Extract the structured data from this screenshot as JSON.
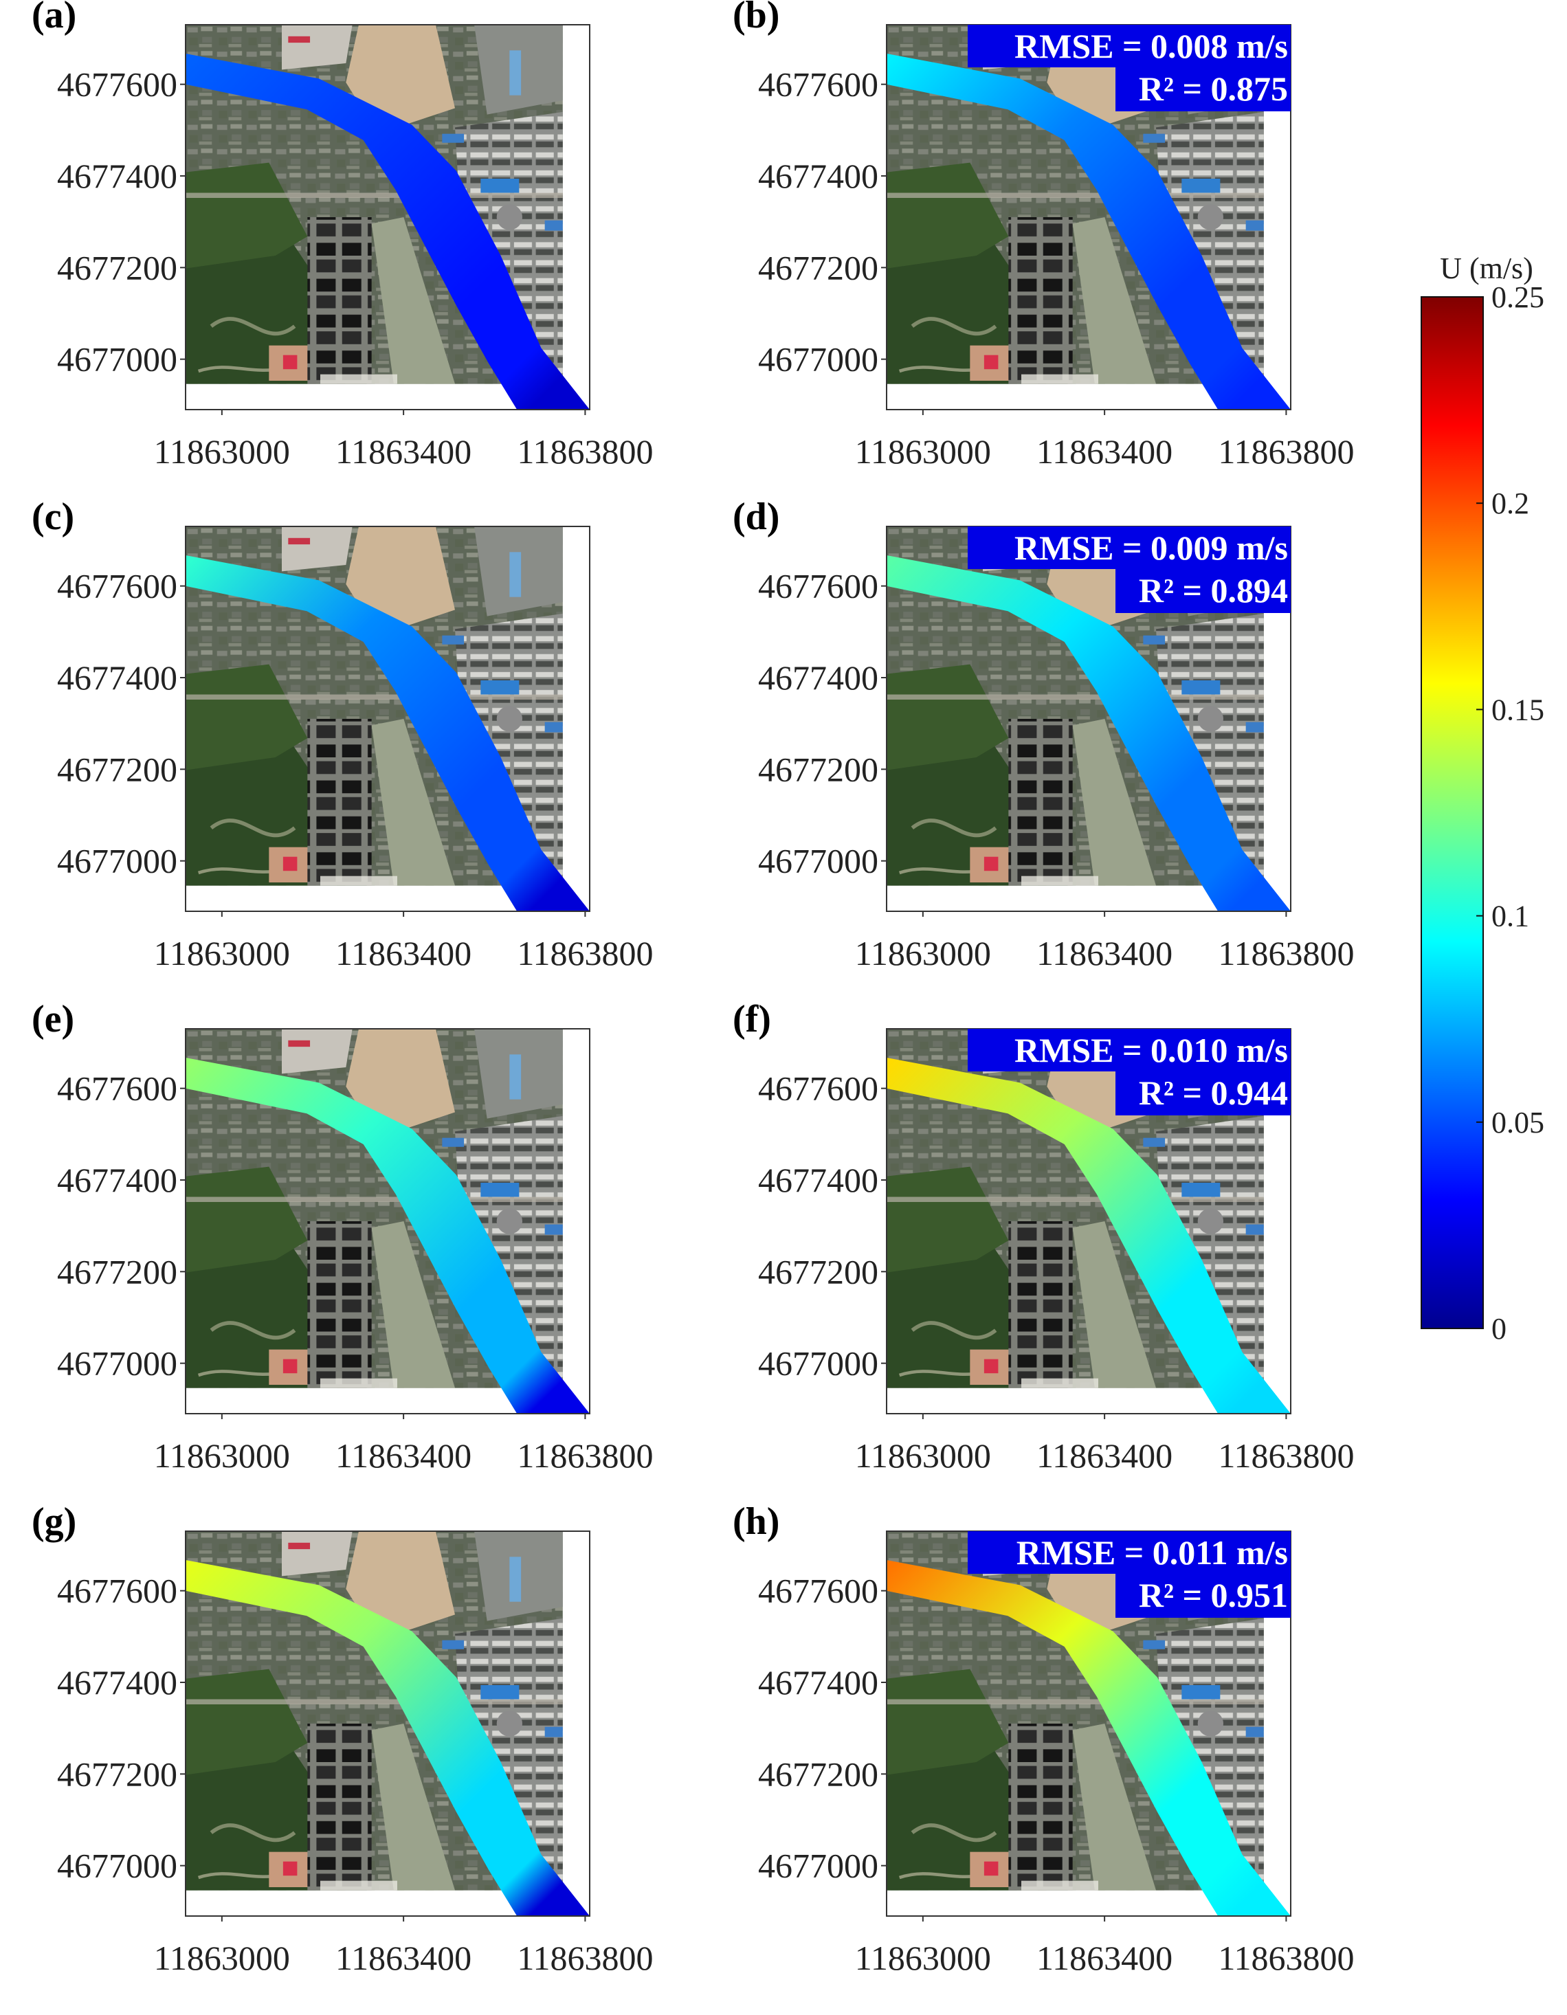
{
  "chart_data": {
    "type": "heatmap",
    "colorbar": {
      "title": "U (m/s)",
      "range": [
        0,
        0.25
      ],
      "ticks": [
        "0",
        "0.05",
        "0.1",
        "0.15",
        "0.2",
        "0.25"
      ],
      "tick_values": [
        0,
        0.05,
        0.1,
        0.15,
        0.2,
        0.25
      ],
      "colormap": [
        "#00008f",
        "#0000ff",
        "#00ffff",
        "#ffff00",
        "#ff0000",
        "#800000"
      ]
    },
    "axes": {
      "xlim": [
        11862920,
        11863810
      ],
      "ylim": [
        4676890,
        4677730
      ],
      "xticks": [
        11863000,
        11863400,
        11863800
      ],
      "yticks": [
        4677000,
        4677200,
        4677400,
        4677600
      ],
      "xtick_labels": [
        "11863000",
        "11863400",
        "11863800"
      ],
      "ytick_labels": [
        "4677000",
        "4677200",
        "4677400",
        "4677600"
      ]
    },
    "panels": [
      {
        "label": "(a)",
        "rmse": "",
        "r2": "",
        "velocity": {
          "upstream": 0.055,
          "bend": 0.045,
          "downstream": 0.035,
          "tail": 0.018
        }
      },
      {
        "label": "(b)",
        "rmse": "RMSE = 0.008 m/s",
        "r2": "R² = 0.875",
        "velocity": {
          "upstream": 0.09,
          "bend": 0.063,
          "downstream": 0.045,
          "tail": 0.04
        }
      },
      {
        "label": "(c)",
        "rmse": "",
        "r2": "",
        "velocity": {
          "upstream": 0.105,
          "bend": 0.065,
          "downstream": 0.05,
          "tail": 0.02
        }
      },
      {
        "label": "(d)",
        "rmse": "RMSE = 0.009 m/s",
        "r2": "R² = 0.894",
        "velocity": {
          "upstream": 0.115,
          "bend": 0.088,
          "downstream": 0.06,
          "tail": 0.052
        }
      },
      {
        "label": "(e)",
        "rmse": "",
        "r2": "",
        "velocity": {
          "upstream": 0.13,
          "bend": 0.105,
          "downstream": 0.075,
          "tail": 0.025
        }
      },
      {
        "label": "(f)",
        "rmse": "RMSE = 0.010 m/s",
        "r2": "R² = 0.944",
        "velocity": {
          "upstream": 0.165,
          "bend": 0.135,
          "downstream": 0.09,
          "tail": 0.085
        }
      },
      {
        "label": "(g)",
        "rmse": "",
        "r2": "",
        "velocity": {
          "upstream": 0.15,
          "bend": 0.13,
          "downstream": 0.085,
          "tail": 0.02
        }
      },
      {
        "label": "(h)",
        "rmse": "RMSE = 0.011 m/s",
        "r2": "R² = 0.951",
        "velocity": {
          "upstream": 0.19,
          "bend": 0.15,
          "downstream": 0.095,
          "tail": 0.09
        }
      }
    ]
  }
}
